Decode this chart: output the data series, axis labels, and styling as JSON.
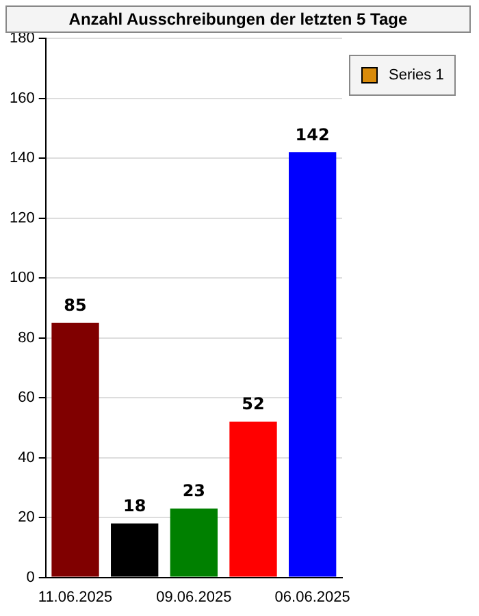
{
  "chart_data": {
    "type": "bar",
    "title": "Anzahl Ausschreibungen der letzten 5 Tage",
    "categories": [
      "11.06.2025",
      null,
      "09.06.2025",
      null,
      "06.06.2025"
    ],
    "series": [
      {
        "name": "Series 1",
        "color": "#d98b0b",
        "colors": [
          "#800000",
          "#000000",
          "#008000",
          "#ff0000",
          "#0000ff"
        ],
        "values": [
          85,
          18,
          23,
          52,
          142
        ]
      }
    ],
    "ylim": [
      0,
      180
    ],
    "yticks": [
      0,
      20,
      40,
      60,
      80,
      100,
      120,
      140,
      160,
      180
    ],
    "grid": "y",
    "legend": "top right",
    "data_labels": true
  }
}
